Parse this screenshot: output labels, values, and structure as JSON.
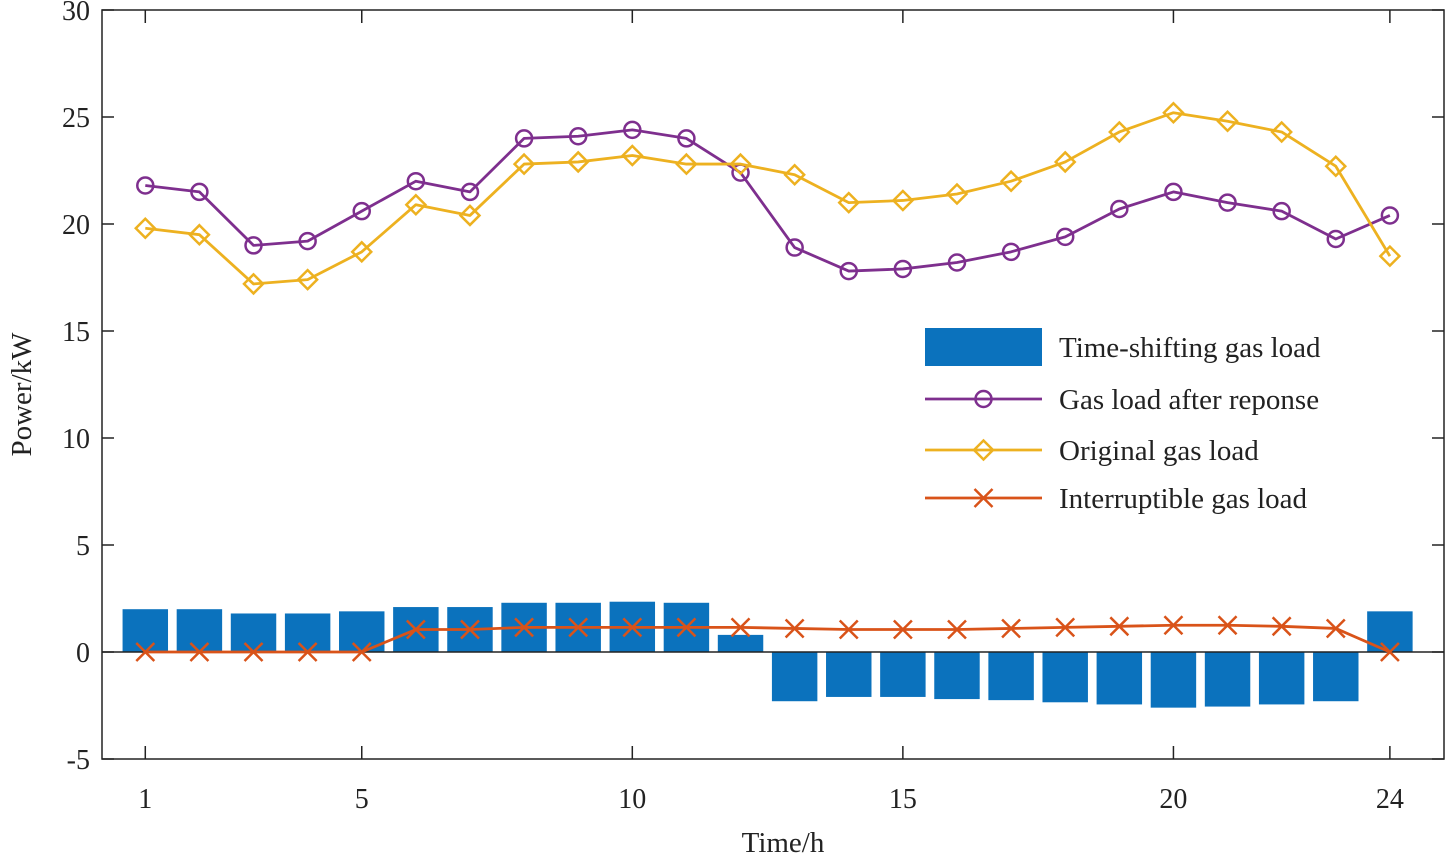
{
  "chart_data": {
    "type": "bar+line",
    "title": "",
    "xlabel": "Time/h",
    "ylabel": "Power/kW",
    "xlim": [
      0.2,
      25.0
    ],
    "ylim": [
      -5,
      30
    ],
    "xticks": [
      1,
      5,
      10,
      15,
      20,
      24
    ],
    "yticks": [
      -5,
      0,
      5,
      10,
      15,
      20,
      25,
      30
    ],
    "x": [
      1,
      2,
      3,
      4,
      5,
      6,
      7,
      8,
      9,
      10,
      11,
      12,
      13,
      14,
      15,
      16,
      17,
      18,
      19,
      20,
      21,
      22,
      23,
      24
    ],
    "grid": false,
    "legend_position": "right",
    "series": [
      {
        "name": "Time-shifting gas load",
        "type": "bar",
        "color": "#0b72bd",
        "values": [
          2.0,
          2.0,
          1.8,
          1.8,
          1.9,
          2.1,
          2.1,
          2.3,
          2.3,
          2.35,
          2.3,
          0.8,
          -2.3,
          -2.1,
          -2.1,
          -2.2,
          -2.25,
          -2.35,
          -2.45,
          -2.6,
          -2.55,
          -2.45,
          -2.3,
          1.9
        ]
      },
      {
        "name": "Gas load after reponse",
        "type": "line",
        "marker": "circle",
        "color": "#7e2f8e",
        "values": [
          21.8,
          21.5,
          19.0,
          19.2,
          20.6,
          22.0,
          21.5,
          24.0,
          24.1,
          24.4,
          24.0,
          22.4,
          18.9,
          17.8,
          17.9,
          18.2,
          18.7,
          19.4,
          20.7,
          21.5,
          21.0,
          20.6,
          19.3,
          20.4
        ]
      },
      {
        "name": "Original gas load",
        "type": "line",
        "marker": "diamond",
        "color": "#edb120",
        "values": [
          19.8,
          19.5,
          17.2,
          17.4,
          18.7,
          20.9,
          20.4,
          22.8,
          22.9,
          23.2,
          22.8,
          22.8,
          22.3,
          21.0,
          21.1,
          21.4,
          22.0,
          22.9,
          24.3,
          25.2,
          24.8,
          24.3,
          22.7,
          18.5
        ]
      },
      {
        "name": "Interruptible gas load",
        "type": "line",
        "marker": "x",
        "color": "#d95319",
        "values": [
          0,
          0,
          0,
          0,
          0,
          1.05,
          1.05,
          1.15,
          1.15,
          1.15,
          1.15,
          1.15,
          1.1,
          1.05,
          1.05,
          1.05,
          1.1,
          1.15,
          1.2,
          1.25,
          1.25,
          1.2,
          1.1,
          0
        ]
      }
    ]
  }
}
